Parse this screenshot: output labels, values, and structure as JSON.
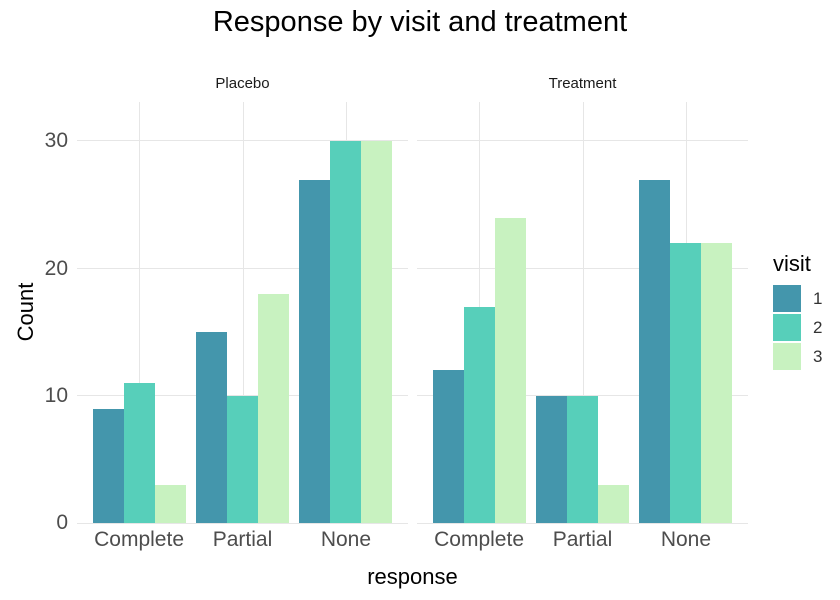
{
  "title": "Response by visit and treatment",
  "chart_data": {
    "type": "bar",
    "grouping": "dodged",
    "faceted": true,
    "title": "Response by visit and treatment",
    "xlabel": "response",
    "ylabel": "Count",
    "ylim": [
      0,
      33.1
    ],
    "y_ticks": [
      0,
      10,
      20,
      30
    ],
    "categories": [
      "Complete",
      "Partial",
      "None"
    ],
    "legend_title": "visit",
    "legend_position": "right",
    "grid": "major-only",
    "facets": [
      {
        "label": "Placebo",
        "series": [
          {
            "name": "1",
            "color": "#4496ac",
            "values": [
              9,
              15,
              27
            ]
          },
          {
            "name": "2",
            "color": "#57cfba",
            "values": [
              11,
              10,
              30
            ]
          },
          {
            "name": "3",
            "color": "#c8f2c0",
            "values": [
              3,
              18,
              30
            ]
          }
        ]
      },
      {
        "label": "Treatment",
        "series": [
          {
            "name": "1",
            "color": "#4496ac",
            "values": [
              12,
              10,
              27
            ]
          },
          {
            "name": "2",
            "color": "#57cfba",
            "values": [
              17,
              10,
              22
            ]
          },
          {
            "name": "3",
            "color": "#c8f2c0",
            "values": [
              24,
              3,
              22
            ]
          }
        ]
      }
    ]
  },
  "legend": {
    "title": "visit",
    "items": [
      {
        "label": "1",
        "color": "#4496ac"
      },
      {
        "label": "2",
        "color": "#57cfba"
      },
      {
        "label": "3",
        "color": "#c8f2c0"
      }
    ]
  },
  "colors": {
    "background": "#ffffff",
    "grid": "#e6e6e6",
    "axis_text": "#4d4d4d",
    "strip_text": "#1a1a1a",
    "title_text": "#000000"
  }
}
